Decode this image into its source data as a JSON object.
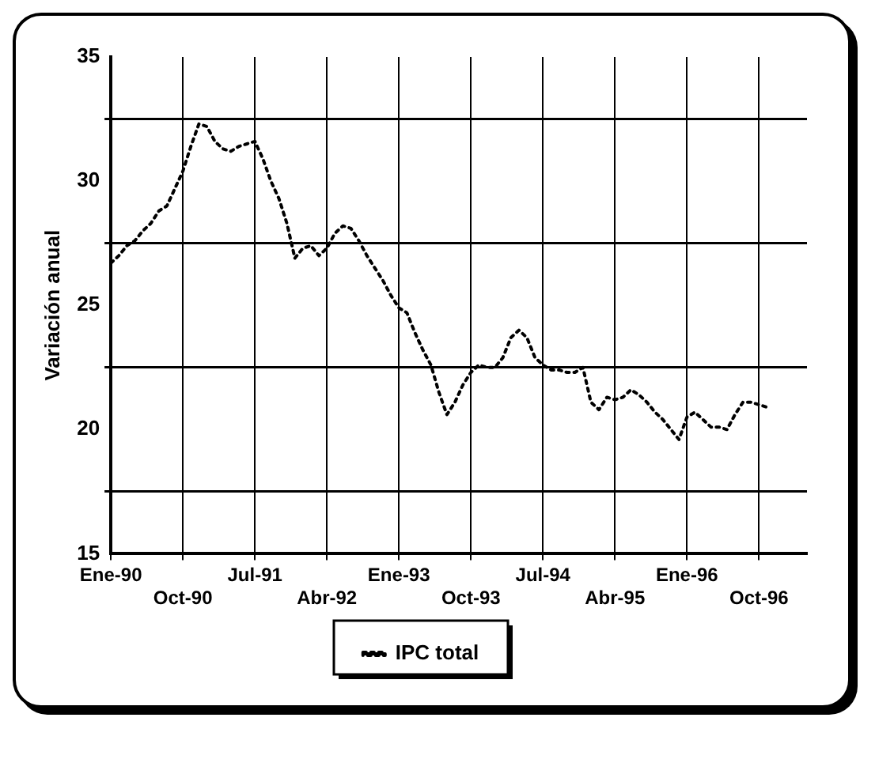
{
  "chart_data": {
    "type": "line",
    "ylabel": "Variación anual",
    "categories": [
      "Ene-90",
      null,
      null,
      null,
      null,
      null,
      null,
      null,
      null,
      "Oct-90",
      null,
      null,
      null,
      null,
      null,
      null,
      null,
      null,
      "Jul-91",
      null,
      null,
      null,
      null,
      null,
      null,
      null,
      null,
      "Abr-92",
      null,
      null,
      null,
      null,
      null,
      null,
      null,
      null,
      "Ene-93",
      null,
      null,
      null,
      null,
      null,
      null,
      null,
      null,
      "Oct-93",
      null,
      null,
      null,
      null,
      null,
      null,
      null,
      null,
      "Jul-94",
      null,
      null,
      null,
      null,
      null,
      null,
      null,
      null,
      "Abr-95",
      null,
      null,
      null,
      null,
      null,
      null,
      null,
      null,
      "Ene-96",
      null,
      null,
      null,
      null,
      null,
      null,
      null,
      null,
      "Oct-96",
      null,
      null,
      null,
      null,
      null,
      null
    ],
    "series": [
      {
        "name": "IPC total",
        "color": "#000000",
        "values": [
          26.7,
          27.0,
          27.4,
          27.6,
          28.0,
          28.3,
          28.8,
          29.0,
          29.7,
          30.4,
          31.4,
          32.3,
          32.2,
          31.6,
          31.3,
          31.2,
          31.4,
          31.5,
          31.6,
          30.9,
          30.0,
          29.3,
          28.3,
          26.9,
          27.3,
          27.4,
          27.0,
          27.3,
          27.9,
          28.2,
          28.1,
          27.6,
          27.0,
          26.5,
          26.0,
          25.4,
          24.9,
          24.7,
          23.9,
          23.2,
          22.6,
          21.5,
          20.6,
          21.1,
          21.8,
          22.3,
          22.6,
          22.5,
          22.5,
          22.9,
          23.7,
          24.0,
          23.7,
          22.9,
          22.6,
          22.4,
          22.4,
          22.3,
          22.3,
          22.5,
          21.1,
          20.8,
          21.3,
          21.2,
          21.3,
          21.6,
          21.4,
          21.1,
          20.7,
          20.4,
          20.0,
          19.6,
          20.5,
          20.7,
          20.4,
          20.1,
          20.1,
          20.0,
          20.6,
          21.1,
          21.1,
          21.0,
          20.9,
          null,
          null,
          null,
          null,
          null
        ]
      }
    ],
    "ylim": [
      15,
      35
    ],
    "yticks": [
      15,
      {
        "value": 17.5,
        "label": null
      },
      20,
      {
        "value": 22.5,
        "label": null
      },
      25,
      {
        "value": 27.5,
        "label": null
      },
      30,
      {
        "value": 32.5,
        "label": null
      },
      35
    ],
    "grid": true,
    "legend": "bottom",
    "marker": "none",
    "line_style": "dotted"
  }
}
